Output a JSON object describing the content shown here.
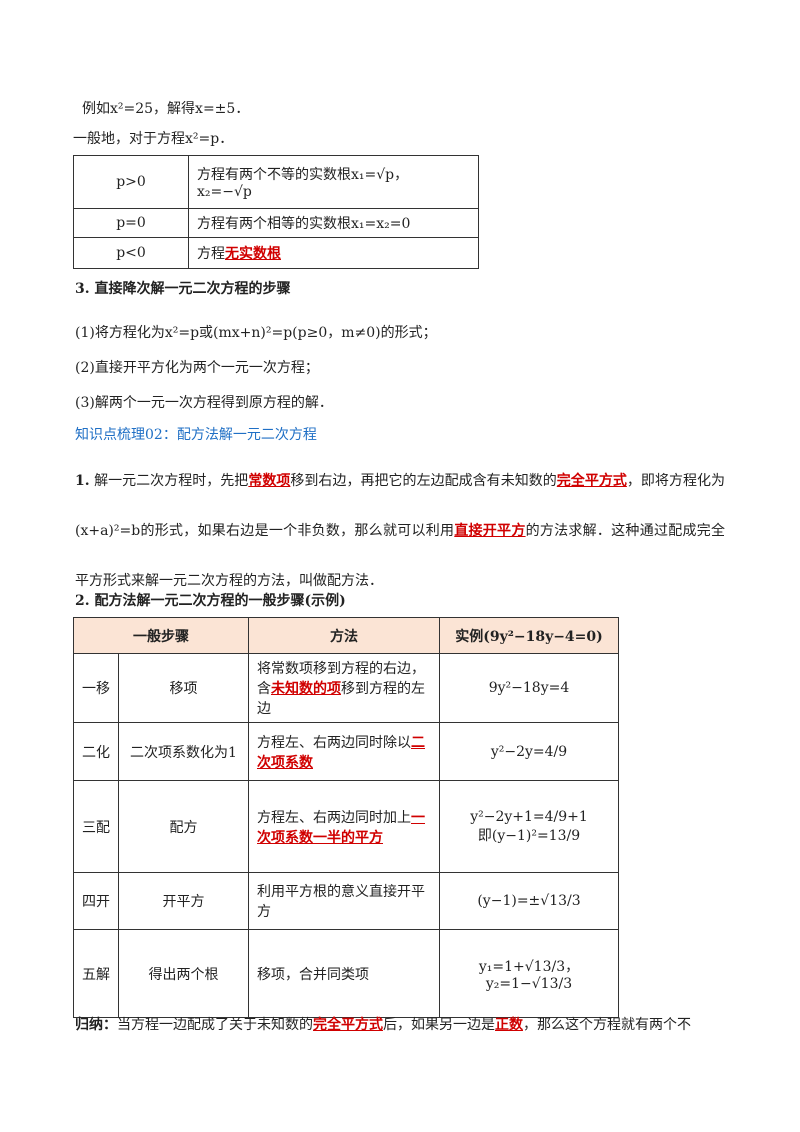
{
  "intro": [
    "例如x²=25，解得x=±5．",
    "一般地，对于方程x²=p．"
  ],
  "table1": {
    "rows": [
      {
        "cond": "p>0",
        "desc": [
          "方程有两个不等的实数根x₁=√p，",
          "x₂=−√p"
        ]
      },
      {
        "cond": "p=0",
        "desc": [
          "方程有两个相等的实数根x₁=x₂=0"
        ]
      },
      {
        "cond": "p<0",
        "desc": [
          [
            {
              "t": "方程"
            },
            {
              "t": "无实数根",
              "em": true
            }
          ]
        ]
      }
    ]
  },
  "section3": {
    "heading": "3.  直接降次解一元二次方程的步骤",
    "steps": [
      "(1)将方程化为x²=p或(mx+n)²=p(p≥0，m≠0)的形式；",
      "(2)直接开平方化为两个一元一次方程；",
      "(3)解两个一元一次方程得到原方程的解．"
    ]
  },
  "topic": "知识点梳理02：配方法解一元二次方程",
  "para1": {
    "num": "1.",
    "segments": [
      {
        "t": "  解一元二次方程时，先把"
      },
      {
        "t": "常数项",
        "em": true
      },
      {
        "t": "移到右边，再把它的左边配成含有未知数的"
      },
      {
        "t": "完全平方式",
        "em": true
      },
      {
        "t": "，即将方程化为(x+a)²=b的形式，如果右边是一个非负数，那么就可以利用"
      },
      {
        "t": "直接开平方",
        "em": true
      },
      {
        "t": "的方法求解．这种通过配成完全平方形式来解一元二次方程的方法，叫做配方法．"
      }
    ]
  },
  "section2": {
    "heading": "2.  配方法解一元二次方程的一般步骤(示例)"
  },
  "table2": {
    "header": [
      "一般步骤",
      "方法",
      "实例(9y²−18y−4=0)"
    ],
    "rows": [
      {
        "no": "一移",
        "step": "移项",
        "method": [
          [
            {
              "t": "将常数项移到方程的右边，含"
            },
            {
              "t": "未知数的项",
              "em": true
            },
            {
              "t": "移到方程的左边"
            }
          ]
        ],
        "example": [
          "9y²−18y=4"
        ]
      },
      {
        "no": "二化",
        "step": "二次项系数化为1",
        "method": [
          [
            {
              "t": "方程左、右两边同时除以"
            },
            {
              "t": "二次项系数",
              "em": true
            }
          ]
        ],
        "example": [
          "y²−2y=4/9"
        ]
      },
      {
        "no": "三配",
        "step": "配方",
        "method": [
          [
            {
              "t": "方程左、右两边同时加上"
            },
            {
              "t": "一次项系数一半的平方",
              "em": true
            }
          ]
        ],
        "example": [
          "y²−2y+1=4/9+1",
          "即(y−1)²=13/9"
        ]
      },
      {
        "no": "四开",
        "step": "开平方",
        "method": [
          "利用平方根的意义直接开平方"
        ],
        "example": [
          "(y−1)=±√13/3"
        ]
      },
      {
        "no": "五解",
        "step": "得出两个根",
        "method": [
          "移项，合并同类项"
        ],
        "example": [
          "y₁=1+√13/3，",
          "y₂=1−√13/3"
        ]
      }
    ]
  },
  "summary": {
    "label": "归纳：",
    "segments": [
      {
        "t": "当方程一边配成了关于未知数的"
      },
      {
        "t": "完全平方式",
        "em": true
      },
      {
        "t": "后，如果另一边是"
      },
      {
        "t": "正数",
        "em": true
      },
      {
        "t": "，那么这个方程就有两个不"
      }
    ]
  }
}
